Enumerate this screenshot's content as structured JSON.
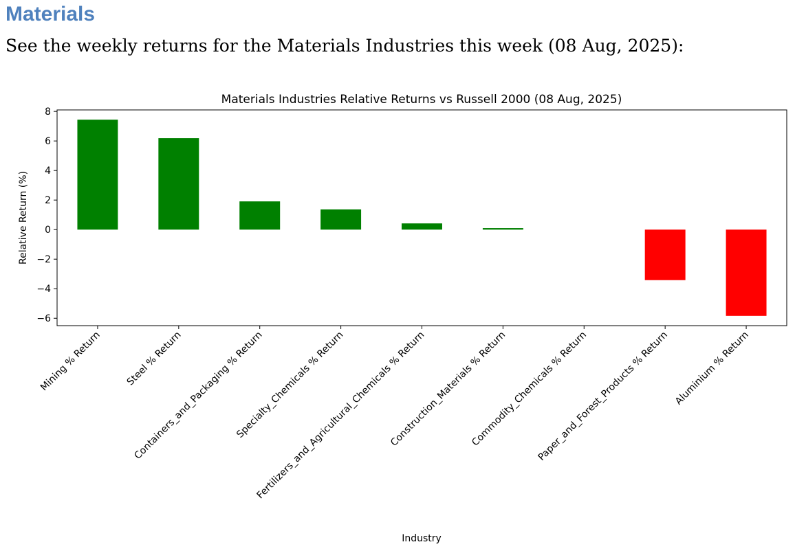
{
  "heading": "Materials",
  "intro": "See the weekly returns for the Materials Industries this week (08 Aug, 2025):",
  "chart_data": {
    "type": "bar",
    "title": "Materials Industries Relative Returns vs Russell 2000 (08 Aug, 2025)",
    "xlabel": "Industry",
    "ylabel": "Relative Return (%)",
    "ylim": [
      -6.5,
      8.1
    ],
    "yticks": [
      -6,
      -4,
      -2,
      0,
      2,
      4,
      6,
      8
    ],
    "grid": false,
    "categories": [
      "Mining % Return",
      "Steel % Return",
      "Containers_and_Packaging % Return",
      "Specialty_Chemicals % Return",
      "Fertilizers_and_Agricultural_Chemicals % Return",
      "Construction_Materials % Return",
      "Commodity_Chemicals % Return",
      "Paper_and_Forest_Products % Return",
      "Aluminium % Return"
    ],
    "values": [
      7.44,
      6.19,
      1.91,
      1.37,
      0.42,
      0.1,
      0.0,
      -3.42,
      -5.84
    ],
    "colors": {
      "positive": "#008000",
      "negative": "#ff0000"
    }
  }
}
